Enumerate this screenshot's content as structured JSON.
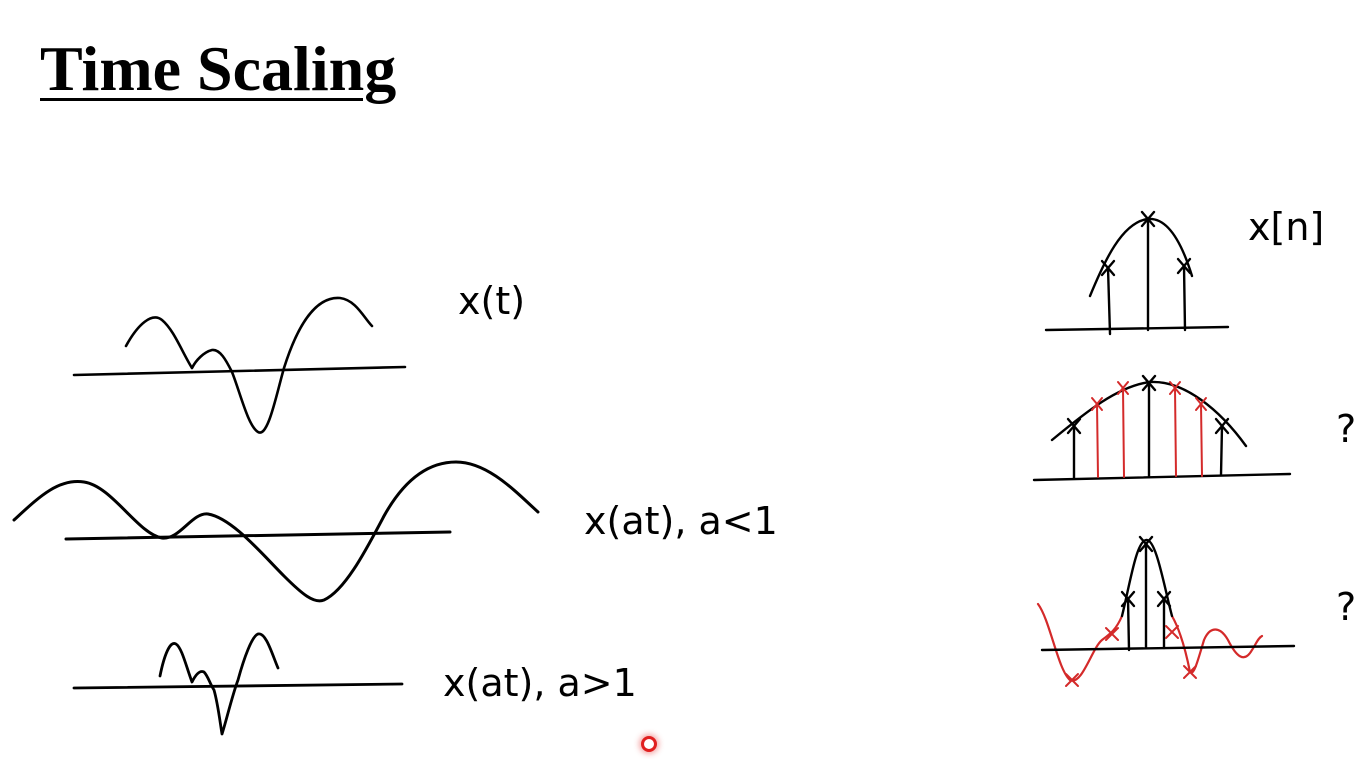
{
  "slide": {
    "title": "Time Scaling"
  },
  "labels": {
    "continuous_original": "x(t)",
    "continuous_stretched": "x(at), a<1",
    "continuous_compressed": "x(at), a>1",
    "discrete_original": "x[n]",
    "discrete_stretched_question": "?",
    "discrete_compressed_question": "?"
  },
  "colors": {
    "ink": "#000000",
    "added_samples": "#d42a2a",
    "pointer": "#e02020"
  },
  "icons": {
    "pointer": "laser-pointer-icon",
    "sample_marker": "cross-icon"
  }
}
